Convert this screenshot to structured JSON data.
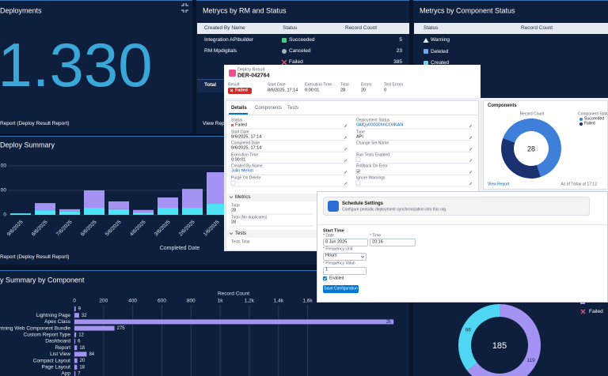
{
  "deployments": {
    "title": "Deployments",
    "value": "1.330",
    "footer": "Report (Deploy Result Report)"
  },
  "rm_status": {
    "title": "Metrycs by RM and Status",
    "columns": [
      "Created By Name",
      "Status",
      "Record Count"
    ],
    "rows": [
      [
        "Integration APIbuilder",
        "Succeeded",
        5
      ],
      [
        "RM Mpdigitals",
        "Canceled",
        23
      ],
      [
        null,
        "Failed",
        385
      ]
    ],
    "total": "Total",
    "footer": "View Report"
  },
  "component_status": {
    "title": "Metrycs by Component Status",
    "columns": [
      "Status",
      "Record Count"
    ],
    "rows": [
      "Warning",
      "Deleted",
      "Created"
    ]
  },
  "deploy_summary": {
    "title": "Deploy Summary",
    "footer": "Report (Deploy Result Report)",
    "chart": {
      "type": "bar",
      "stacked": true,
      "categories": [
        "9/6/2025",
        "8/6/2025",
        "7/6/2025",
        "6/6/2025",
        "5/6/2025",
        "4/6/2025",
        "3/6/2025",
        "2/6/2025",
        "1/6/2025"
      ],
      "series": [
        {
          "color": "#4fe3f7",
          "values": [
            6,
            19,
            13,
            29,
            23,
            10,
            29,
            29,
            45
          ]
        },
        {
          "color": "#a493f3",
          "values": [
            0,
            29,
            10,
            71,
            32,
            10,
            42,
            77,
            129
          ]
        }
      ],
      "ylim": [
        0,
        200
      ],
      "yticks": [
        0,
        {
          "value": 100,
          "label": "00"
        },
        {
          "value": 200,
          "label": "00"
        }
      ],
      "xlabel": "Completed Date",
      "grid": true
    }
  },
  "component_summary": {
    "title": "y Summary by Component",
    "chart": {
      "type": "hbar",
      "xlabel": "Record Count",
      "categories": [
        null,
        "Lightning Page",
        "Apex Class",
        "Lightning Web Component Bundle",
        "Custom Report Type",
        "Dashboard",
        "Report",
        "List View",
        "Compact Layout",
        "Page Layout",
        "App"
      ],
      "values": [
        9,
        32,
        2190,
        275,
        12,
        6,
        18,
        84,
        20,
        18,
        7
      ],
      "value_labels": [
        "9",
        "32",
        "2k",
        "275",
        "12",
        "6",
        "18",
        "84",
        "20",
        "18",
        "7"
      ],
      "color": "#a493f3",
      "xlim": [
        0,
        2200
      ],
      "xticks": [
        0,
        200,
        400,
        600,
        800,
        {
          "value": 1000,
          "label": "1k"
        },
        {
          "value": 1200,
          "label": "1,2k"
        },
        {
          "value": 1400,
          "label": "1,4k"
        },
        {
          "value": 1600,
          "label": "1,6k"
        }
      ],
      "grid": true
    }
  },
  "status_donut": {
    "chart": {
      "type": "donut",
      "series": [
        {
          "color": "#4fd6f2",
          "value": 66
        },
        {
          "color": "#a493f3",
          "value": 119
        }
      ],
      "total": 185,
      "legend": [
        "Failed"
      ]
    }
  },
  "record": {
    "object": "Deploy Result",
    "name": "DER-042764",
    "highlights": [
      {
        "label": "Result",
        "value": "Failed"
      },
      {
        "label": "Start Date",
        "value": "8/6/2025, 17:14"
      },
      {
        "label": "Execution Time",
        "value": "0:00:01"
      },
      {
        "label": "Total",
        "value": 28
      },
      {
        "label": "Errors",
        "value": 20
      },
      {
        "label": "Test Errors",
        "value": 0
      }
    ],
    "tabs": [
      "Details",
      "Components",
      "Tests"
    ],
    "fields": [
      {
        "label": "Status",
        "value": "Failed"
      },
      {
        "label": "Deployment Status",
        "value": "0AfQy00000hhCOnKAN"
      },
      {
        "label": "Start Date",
        "value": "8/6/2025, 17:14"
      },
      {
        "label": "Type",
        "value": "API"
      },
      {
        "label": "Completed Date",
        "value": "8/6/2025, 17:14"
      },
      {
        "label": "Change Set Name"
      },
      {
        "label": "Execution Time",
        "value": "0:00:01"
      },
      {
        "label": "Run Tests Enabled",
        "checkbox": false
      },
      {
        "label": "Created By Name",
        "value": "Julio Melon"
      },
      {
        "label": "Rollback On Error",
        "checkbox": true
      },
      {
        "label": "Purge On Delete",
        "checkbox": false
      },
      {
        "label": "Ignore Warnings",
        "checkbox": false
      }
    ],
    "sections": [
      {
        "title": "Metrics",
        "fields": [
          {
            "label": "Total",
            "value": 28
          },
          {
            "label": "Total (No duplicates)",
            "value": 28
          }
        ]
      },
      {
        "title": "Tests",
        "fields": [
          {
            "label": "Tests Total"
          }
        ]
      }
    ]
  },
  "components_card": {
    "title": "Components",
    "chart": {
      "type": "donut",
      "xlabel": "Record Count",
      "legend_title": "Component Status",
      "series": [
        {
          "name": "Succeeded",
          "color": "#3d7fd9",
          "value": 18
        },
        {
          "name": "Failed",
          "color": "#1c3170",
          "value": 10
        }
      ],
      "total": 28
    },
    "footer": "View Report",
    "timestamp": "As of Today at 17:12"
  },
  "schedule": {
    "title": "Schedule Settings",
    "description": "Configure periodic deployment synchronization into this org.",
    "section": "Start Time",
    "fields": [
      {
        "label": "* Date",
        "value": "8 Jun 2025"
      },
      {
        "label": "* Time",
        "value": "20:16"
      },
      {
        "label": "* Frequency Unit",
        "value": "Hours"
      },
      {
        "label": "* Frequency Value",
        "value": 1
      }
    ],
    "checkbox": {
      "label": "Enabled",
      "checked": true
    },
    "button": "Save Configuration"
  }
}
